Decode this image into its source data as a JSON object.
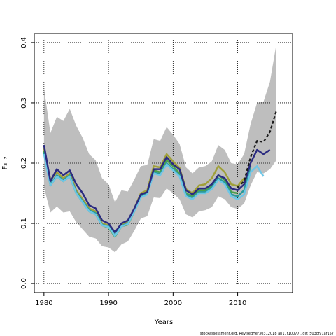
{
  "chart_data": {
    "type": "line",
    "xlabel": "Years",
    "ylabel": "F₃₋₇",
    "footnote": "stockassessment.org, RevisedHer30312018 an1, r10077 , git: 503cf91af157",
    "x": [
      1980,
      1981,
      1982,
      1983,
      1984,
      1985,
      1986,
      1987,
      1988,
      1989,
      1990,
      1991,
      1992,
      1993,
      1994,
      1995,
      1996,
      1997,
      1998,
      1999,
      2000,
      2001,
      2002,
      2003,
      2004,
      2005,
      2006,
      2007,
      2008,
      2009,
      2010,
      2011,
      2012,
      2013,
      2014,
      2015,
      2016
    ],
    "xlim": [
      1978.5,
      2018.5
    ],
    "xticks": [
      1980,
      1990,
      2000,
      2010
    ],
    "ylim": [
      -0.015,
      0.415
    ],
    "yticks": [
      {
        "value": 0,
        "label": "0.0"
      },
      0.1,
      0.2,
      0.3,
      0.4
    ],
    "grid": true,
    "band": {
      "color": "#bebebe",
      "upper": [
        0.325,
        0.25,
        0.277,
        0.27,
        0.29,
        0.262,
        0.242,
        0.215,
        0.205,
        0.175,
        0.165,
        0.135,
        0.155,
        0.153,
        0.173,
        0.195,
        0.197,
        0.24,
        0.237,
        0.26,
        0.247,
        0.232,
        0.193,
        0.183,
        0.193,
        0.195,
        0.203,
        0.23,
        0.222,
        0.2,
        0.198,
        0.215,
        0.265,
        0.3,
        0.302,
        0.335,
        0.398
      ],
      "lower": [
        0.16,
        0.118,
        0.128,
        0.118,
        0.12,
        0.102,
        0.09,
        0.078,
        0.075,
        0.062,
        0.06,
        0.052,
        0.065,
        0.07,
        0.088,
        0.108,
        0.112,
        0.143,
        0.142,
        0.158,
        0.15,
        0.14,
        0.115,
        0.11,
        0.12,
        0.122,
        0.127,
        0.145,
        0.14,
        0.127,
        0.124,
        0.133,
        0.163,
        0.185,
        0.183,
        0.19,
        0.205
      ]
    },
    "series": [
      {
        "color": "#a0a03a",
        "dashed": false,
        "values": [
          0.225,
          0.172,
          0.185,
          0.175,
          0.183,
          0.155,
          0.14,
          0.125,
          0.12,
          0.1,
          0.097,
          0.082,
          0.098,
          0.103,
          0.125,
          0.15,
          0.155,
          0.195,
          0.193,
          0.215,
          0.203,
          0.192,
          0.157,
          0.15,
          0.163,
          0.165,
          0.175,
          0.195,
          0.185,
          0.165,
          0.162,
          0.175,
          null,
          null,
          null,
          null,
          null
        ]
      },
      {
        "color": "#4aa04a",
        "dashed": false,
        "values": [
          0.22,
          0.163,
          0.178,
          0.17,
          0.178,
          0.15,
          0.135,
          0.12,
          0.115,
          0.097,
          0.093,
          0.078,
          0.095,
          0.098,
          0.12,
          0.145,
          0.15,
          0.188,
          0.185,
          0.205,
          0.195,
          0.183,
          0.15,
          0.145,
          0.155,
          0.155,
          0.163,
          0.18,
          0.172,
          0.152,
          0.15,
          null,
          null,
          null,
          null,
          null,
          null
        ]
      },
      {
        "color": "#2a9a9a",
        "dashed": false,
        "values": [
          0.218,
          0.165,
          0.18,
          0.172,
          0.18,
          0.152,
          0.137,
          0.122,
          0.117,
          0.098,
          0.095,
          0.08,
          0.096,
          0.1,
          0.122,
          0.145,
          0.15,
          0.185,
          0.182,
          0.2,
          0.19,
          0.18,
          0.148,
          0.142,
          0.152,
          0.152,
          0.16,
          0.175,
          0.168,
          0.148,
          0.145,
          0.155,
          0.195,
          null,
          null,
          null,
          null
        ]
      },
      {
        "color": "#6ec6e6",
        "dashed": false,
        "values": [
          0.215,
          0.163,
          0.178,
          0.17,
          0.178,
          0.15,
          0.135,
          0.12,
          0.115,
          0.097,
          0.094,
          0.079,
          0.095,
          0.099,
          0.12,
          0.143,
          0.148,
          0.183,
          0.18,
          0.198,
          0.188,
          0.178,
          0.145,
          0.14,
          0.15,
          0.15,
          0.157,
          0.172,
          0.165,
          0.145,
          0.14,
          0.148,
          0.185,
          0.195,
          0.178,
          null,
          null
        ]
      },
      {
        "color": "#2b2b80",
        "dashed": false,
        "values": [
          0.23,
          0.17,
          0.19,
          0.18,
          0.188,
          0.165,
          0.15,
          0.13,
          0.125,
          0.105,
          0.1,
          0.085,
          0.1,
          0.105,
          0.125,
          0.148,
          0.152,
          0.19,
          0.19,
          0.21,
          0.198,
          0.19,
          0.155,
          0.148,
          0.158,
          0.158,
          0.165,
          0.18,
          0.175,
          0.158,
          0.155,
          0.165,
          0.2,
          0.222,
          0.215,
          0.222,
          null
        ]
      },
      {
        "color": "#1a1a1a",
        "dashed": true,
        "values": [
          null,
          null,
          null,
          null,
          null,
          null,
          null,
          null,
          null,
          null,
          null,
          null,
          null,
          null,
          null,
          null,
          null,
          null,
          null,
          null,
          null,
          null,
          null,
          null,
          null,
          null,
          null,
          null,
          null,
          null,
          0.16,
          0.17,
          0.21,
          0.237,
          0.235,
          0.252,
          0.287
        ]
      }
    ]
  }
}
